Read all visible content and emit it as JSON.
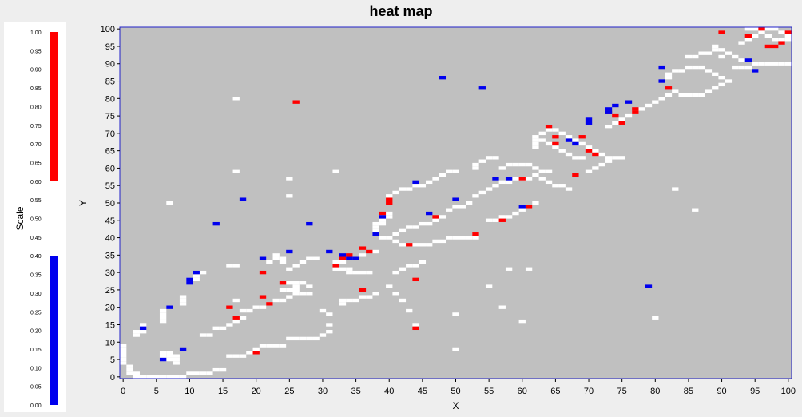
{
  "title": "heat map",
  "colors": {
    "background": "#eeeeee",
    "plot_background": "#c0c0c0",
    "plot_border": "#2020c8",
    "empty_cell": "#ffffff",
    "high": "#ff0000",
    "low": "#0000ee",
    "mid": "#ffffff"
  },
  "scale": {
    "label": "Scale",
    "ticks": [
      "1.00",
      "0.95",
      "0.90",
      "0.85",
      "0.80",
      "0.75",
      "0.70",
      "0.65",
      "0.60",
      "0.55",
      "0.50",
      "0.45",
      "0.40",
      "0.35",
      "0.30",
      "0.25",
      "0.20",
      "0.15",
      "0.10",
      "0.05",
      "0.00"
    ],
    "high_range": [
      0.6,
      1.0
    ],
    "low_range": [
      0.0,
      0.4
    ]
  },
  "chart_data": {
    "type": "heatmap",
    "title": "heat map",
    "xlabel": "X",
    "ylabel": "Y",
    "xlim": [
      0,
      100
    ],
    "ylim": [
      0,
      100
    ],
    "x_ticks": [
      0,
      5,
      10,
      15,
      20,
      25,
      30,
      35,
      40,
      45,
      50,
      55,
      60,
      65,
      70,
      75,
      80,
      85,
      90,
      95,
      100
    ],
    "y_ticks": [
      0,
      5,
      10,
      15,
      20,
      25,
      30,
      35,
      40,
      45,
      50,
      55,
      60,
      65,
      70,
      75,
      80,
      85,
      90,
      95,
      100
    ],
    "grid": false,
    "legend": "left",
    "neutral_cells": [
      [
        0,
        9
      ],
      [
        0,
        8
      ],
      [
        0,
        7
      ],
      [
        0,
        6
      ],
      [
        0,
        5
      ],
      [
        0,
        4
      ],
      [
        1,
        3
      ],
      [
        1,
        2
      ],
      [
        1,
        1
      ],
      [
        2,
        1
      ],
      [
        2,
        0
      ],
      [
        3,
        0
      ],
      [
        4,
        0
      ],
      [
        5,
        0
      ],
      [
        6,
        0
      ],
      [
        7,
        0
      ],
      [
        8,
        0
      ],
      [
        9,
        0
      ],
      [
        2,
        12
      ],
      [
        2,
        13
      ],
      [
        3,
        13
      ],
      [
        3,
        14
      ],
      [
        3,
        15
      ],
      [
        6,
        6
      ],
      [
        6,
        7
      ],
      [
        7,
        7
      ],
      [
        7,
        6
      ],
      [
        7,
        5
      ],
      [
        8,
        6
      ],
      [
        8,
        5
      ],
      [
        8,
        4
      ],
      [
        6,
        16
      ],
      [
        6,
        17
      ],
      [
        6,
        18
      ],
      [
        6,
        19
      ],
      [
        7,
        20
      ],
      [
        9,
        21
      ],
      [
        9,
        22
      ],
      [
        9,
        23
      ],
      [
        10,
        27
      ],
      [
        10,
        28
      ],
      [
        11,
        28
      ],
      [
        11,
        29
      ],
      [
        12,
        30
      ],
      [
        10,
        1
      ],
      [
        11,
        1
      ],
      [
        12,
        1
      ],
      [
        13,
        1
      ],
      [
        14,
        2
      ],
      [
        15,
        2
      ],
      [
        16,
        6
      ],
      [
        17,
        6
      ],
      [
        18,
        6
      ],
      [
        19,
        7
      ],
      [
        20,
        8
      ],
      [
        21,
        9
      ],
      [
        22,
        9
      ],
      [
        23,
        9
      ],
      [
        24,
        9
      ],
      [
        25,
        11
      ],
      [
        26,
        11
      ],
      [
        27,
        11
      ],
      [
        28,
        11
      ],
      [
        29,
        11
      ],
      [
        30,
        12
      ],
      [
        31,
        13
      ],
      [
        12,
        12
      ],
      [
        13,
        12
      ],
      [
        14,
        14
      ],
      [
        15,
        14
      ],
      [
        16,
        15
      ],
      [
        17,
        16
      ],
      [
        18,
        17
      ],
      [
        18,
        19
      ],
      [
        19,
        19
      ],
      [
        20,
        20
      ],
      [
        21,
        20
      ],
      [
        22,
        21
      ],
      [
        23,
        22
      ],
      [
        24,
        22
      ],
      [
        25,
        23
      ],
      [
        26,
        24
      ],
      [
        24,
        25
      ],
      [
        25,
        25
      ],
      [
        26,
        26
      ],
      [
        27,
        27
      ],
      [
        28,
        26
      ],
      [
        25,
        27
      ],
      [
        26,
        27
      ],
      [
        26,
        25
      ],
      [
        27,
        24
      ],
      [
        28,
        24
      ],
      [
        25,
        31
      ],
      [
        26,
        32
      ],
      [
        27,
        33
      ],
      [
        28,
        34
      ],
      [
        29,
        34
      ],
      [
        22,
        33
      ],
      [
        23,
        34
      ],
      [
        23,
        35
      ],
      [
        24,
        34
      ],
      [
        24,
        33
      ],
      [
        17,
        22
      ],
      [
        16,
        32
      ],
      [
        17,
        32
      ],
      [
        32,
        31
      ],
      [
        33,
        31
      ],
      [
        34,
        31
      ],
      [
        34,
        30
      ],
      [
        35,
        30
      ],
      [
        36,
        30
      ],
      [
        37,
        30
      ],
      [
        33,
        21
      ],
      [
        33,
        22
      ],
      [
        34,
        22
      ],
      [
        35,
        22
      ],
      [
        36,
        23
      ],
      [
        37,
        23
      ],
      [
        38,
        24
      ],
      [
        30,
        19
      ],
      [
        31,
        18
      ],
      [
        31,
        15
      ],
      [
        32,
        32
      ],
      [
        32,
        33
      ],
      [
        33,
        33
      ],
      [
        34,
        34
      ],
      [
        35,
        34
      ],
      [
        36,
        35
      ],
      [
        38,
        36
      ],
      [
        38,
        42
      ],
      [
        38,
        43
      ],
      [
        38,
        44
      ],
      [
        39,
        44
      ],
      [
        39,
        45
      ],
      [
        39,
        46
      ],
      [
        40,
        46
      ],
      [
        40,
        47
      ],
      [
        39,
        40
      ],
      [
        40,
        40
      ],
      [
        41,
        39
      ],
      [
        42,
        38
      ],
      [
        43,
        38
      ],
      [
        44,
        38
      ],
      [
        45,
        38
      ],
      [
        46,
        38
      ],
      [
        47,
        39
      ],
      [
        48,
        39
      ],
      [
        49,
        40
      ],
      [
        50,
        40
      ],
      [
        51,
        40
      ],
      [
        52,
        40
      ],
      [
        53,
        40
      ],
      [
        41,
        41
      ],
      [
        42,
        42
      ],
      [
        43,
        43
      ],
      [
        44,
        43
      ],
      [
        45,
        44
      ],
      [
        46,
        44
      ],
      [
        47,
        45
      ],
      [
        48,
        46
      ],
      [
        49,
        48
      ],
      [
        50,
        49
      ],
      [
        51,
        49
      ],
      [
        52,
        50
      ],
      [
        55,
        45
      ],
      [
        56,
        45
      ],
      [
        57,
        46
      ],
      [
        58,
        46
      ],
      [
        59,
        47
      ],
      [
        60,
        48
      ],
      [
        61,
        49
      ],
      [
        62,
        50
      ],
      [
        40,
        52
      ],
      [
        41,
        53
      ],
      [
        42,
        54
      ],
      [
        43,
        54
      ],
      [
        44,
        55
      ],
      [
        45,
        55
      ],
      [
        46,
        56
      ],
      [
        47,
        57
      ],
      [
        48,
        58
      ],
      [
        49,
        59
      ],
      [
        50,
        59
      ],
      [
        53,
        52
      ],
      [
        54,
        53
      ],
      [
        55,
        54
      ],
      [
        56,
        55
      ],
      [
        57,
        56
      ],
      [
        58,
        56
      ],
      [
        59,
        57
      ],
      [
        60,
        57
      ],
      [
        61,
        57
      ],
      [
        53,
        60
      ],
      [
        53,
        61
      ],
      [
        54,
        62
      ],
      [
        55,
        63
      ],
      [
        56,
        63
      ],
      [
        57,
        60
      ],
      [
        58,
        61
      ],
      [
        59,
        61
      ],
      [
        60,
        61
      ],
      [
        61,
        61
      ],
      [
        62,
        60
      ],
      [
        63,
        59
      ],
      [
        64,
        59
      ],
      [
        50,
        18
      ],
      [
        50,
        8
      ],
      [
        44,
        15
      ],
      [
        43,
        19
      ],
      [
        42,
        22
      ],
      [
        41,
        24
      ],
      [
        40,
        26
      ],
      [
        41,
        30
      ],
      [
        42,
        31
      ],
      [
        43,
        32
      ],
      [
        44,
        32
      ],
      [
        45,
        33
      ],
      [
        55,
        26
      ],
      [
        57,
        20
      ],
      [
        60,
        16
      ],
      [
        58,
        31
      ],
      [
        61,
        31
      ],
      [
        62,
        66
      ],
      [
        62,
        67
      ],
      [
        62,
        68
      ],
      [
        62,
        69
      ],
      [
        63,
        70
      ],
      [
        64,
        71
      ],
      [
        65,
        71
      ],
      [
        66,
        70
      ],
      [
        67,
        69
      ],
      [
        68,
        68
      ],
      [
        69,
        67
      ],
      [
        70,
        66
      ],
      [
        71,
        65
      ],
      [
        72,
        64
      ],
      [
        73,
        63
      ],
      [
        74,
        63
      ],
      [
        75,
        63
      ],
      [
        63,
        68
      ],
      [
        64,
        67
      ],
      [
        65,
        66
      ],
      [
        66,
        65
      ],
      [
        67,
        64
      ],
      [
        68,
        63
      ],
      [
        69,
        63
      ],
      [
        62,
        58
      ],
      [
        63,
        57
      ],
      [
        64,
        56
      ],
      [
        65,
        55
      ],
      [
        66,
        55
      ],
      [
        67,
        54
      ],
      [
        70,
        59
      ],
      [
        71,
        60
      ],
      [
        72,
        61
      ],
      [
        73,
        62
      ],
      [
        73,
        72
      ],
      [
        74,
        73
      ],
      [
        75,
        74
      ],
      [
        76,
        75
      ],
      [
        77,
        76
      ],
      [
        78,
        77
      ],
      [
        79,
        78
      ],
      [
        80,
        79
      ],
      [
        81,
        80
      ],
      [
        82,
        81
      ],
      [
        83,
        82
      ],
      [
        84,
        81
      ],
      [
        85,
        81
      ],
      [
        86,
        81
      ],
      [
        87,
        81
      ],
      [
        88,
        82
      ],
      [
        89,
        83
      ],
      [
        90,
        84
      ],
      [
        82,
        86
      ],
      [
        82,
        87
      ],
      [
        83,
        88
      ],
      [
        84,
        88
      ],
      [
        85,
        89
      ],
      [
        86,
        89
      ],
      [
        87,
        89
      ],
      [
        88,
        88
      ],
      [
        89,
        87
      ],
      [
        90,
        86
      ],
      [
        91,
        85
      ],
      [
        85,
        92
      ],
      [
        86,
        92
      ],
      [
        87,
        93
      ],
      [
        88,
        93
      ],
      [
        89,
        94
      ],
      [
        89,
        95
      ],
      [
        90,
        94
      ],
      [
        91,
        93
      ],
      [
        92,
        92
      ],
      [
        93,
        91
      ],
      [
        92,
        89
      ],
      [
        93,
        89
      ],
      [
        94,
        89
      ],
      [
        95,
        90
      ],
      [
        96,
        90
      ],
      [
        97,
        90
      ],
      [
        98,
        90
      ],
      [
        99,
        90
      ],
      [
        100,
        90
      ],
      [
        93,
        96
      ],
      [
        94,
        97
      ],
      [
        95,
        98
      ],
      [
        96,
        99
      ],
      [
        97,
        100
      ],
      [
        98,
        100
      ],
      [
        99,
        99
      ],
      [
        100,
        98
      ],
      [
        94,
        100
      ],
      [
        95,
        100
      ],
      [
        96,
        100
      ],
      [
        97,
        98
      ],
      [
        98,
        97
      ],
      [
        99,
        97
      ],
      [
        100,
        97
      ],
      [
        17,
        80
      ],
      [
        17,
        59
      ],
      [
        25,
        57
      ],
      [
        25,
        52
      ],
      [
        32,
        59
      ],
      [
        7,
        50
      ],
      [
        83,
        54
      ],
      [
        86,
        48
      ],
      [
        80,
        17
      ],
      [
        90,
        92
      ]
    ],
    "high_cells": [
      [
        26,
        79
      ],
      [
        20,
        7
      ],
      [
        21,
        30
      ],
      [
        21,
        23
      ],
      [
        22,
        21
      ],
      [
        24,
        27
      ],
      [
        16,
        20
      ],
      [
        17,
        17
      ],
      [
        32,
        32
      ],
      [
        33,
        34
      ],
      [
        34,
        35
      ],
      [
        35,
        34
      ],
      [
        36,
        37
      ],
      [
        37,
        36
      ],
      [
        36,
        25
      ],
      [
        39,
        47
      ],
      [
        40,
        50
      ],
      [
        40,
        51
      ],
      [
        43,
        38
      ],
      [
        44,
        28
      ],
      [
        44,
        14
      ],
      [
        47,
        46
      ],
      [
        53,
        41
      ],
      [
        57,
        45
      ],
      [
        60,
        57
      ],
      [
        61,
        49
      ],
      [
        64,
        72
      ],
      [
        65,
        69
      ],
      [
        65,
        67
      ],
      [
        68,
        58
      ],
      [
        69,
        69
      ],
      [
        70,
        65
      ],
      [
        71,
        64
      ],
      [
        73,
        76
      ],
      [
        74,
        75
      ],
      [
        75,
        73
      ],
      [
        77,
        77
      ],
      [
        77,
        76
      ],
      [
        82,
        83
      ],
      [
        90,
        99
      ],
      [
        94,
        98
      ],
      [
        96,
        100
      ],
      [
        98,
        95
      ],
      [
        99,
        96
      ],
      [
        100,
        99
      ],
      [
        97,
        95
      ]
    ],
    "low_cells": [
      [
        3,
        14
      ],
      [
        6,
        5
      ],
      [
        7,
        20
      ],
      [
        9,
        8
      ],
      [
        10,
        27
      ],
      [
        10,
        28
      ],
      [
        11,
        30
      ],
      [
        14,
        44
      ],
      [
        18,
        51
      ],
      [
        21,
        34
      ],
      [
        25,
        36
      ],
      [
        28,
        44
      ],
      [
        31,
        36
      ],
      [
        33,
        35
      ],
      [
        34,
        34
      ],
      [
        35,
        34
      ],
      [
        38,
        41
      ],
      [
        39,
        46
      ],
      [
        44,
        56
      ],
      [
        46,
        47
      ],
      [
        48,
        86
      ],
      [
        50,
        51
      ],
      [
        54,
        83
      ],
      [
        56,
        57
      ],
      [
        58,
        57
      ],
      [
        60,
        49
      ],
      [
        67,
        68
      ],
      [
        68,
        67
      ],
      [
        70,
        74
      ],
      [
        70,
        73
      ],
      [
        73,
        77
      ],
      [
        73,
        76
      ],
      [
        74,
        78
      ],
      [
        76,
        79
      ],
      [
        79,
        26
      ],
      [
        81,
        85
      ],
      [
        81,
        89
      ],
      [
        94,
        91
      ],
      [
        95,
        88
      ]
    ]
  }
}
